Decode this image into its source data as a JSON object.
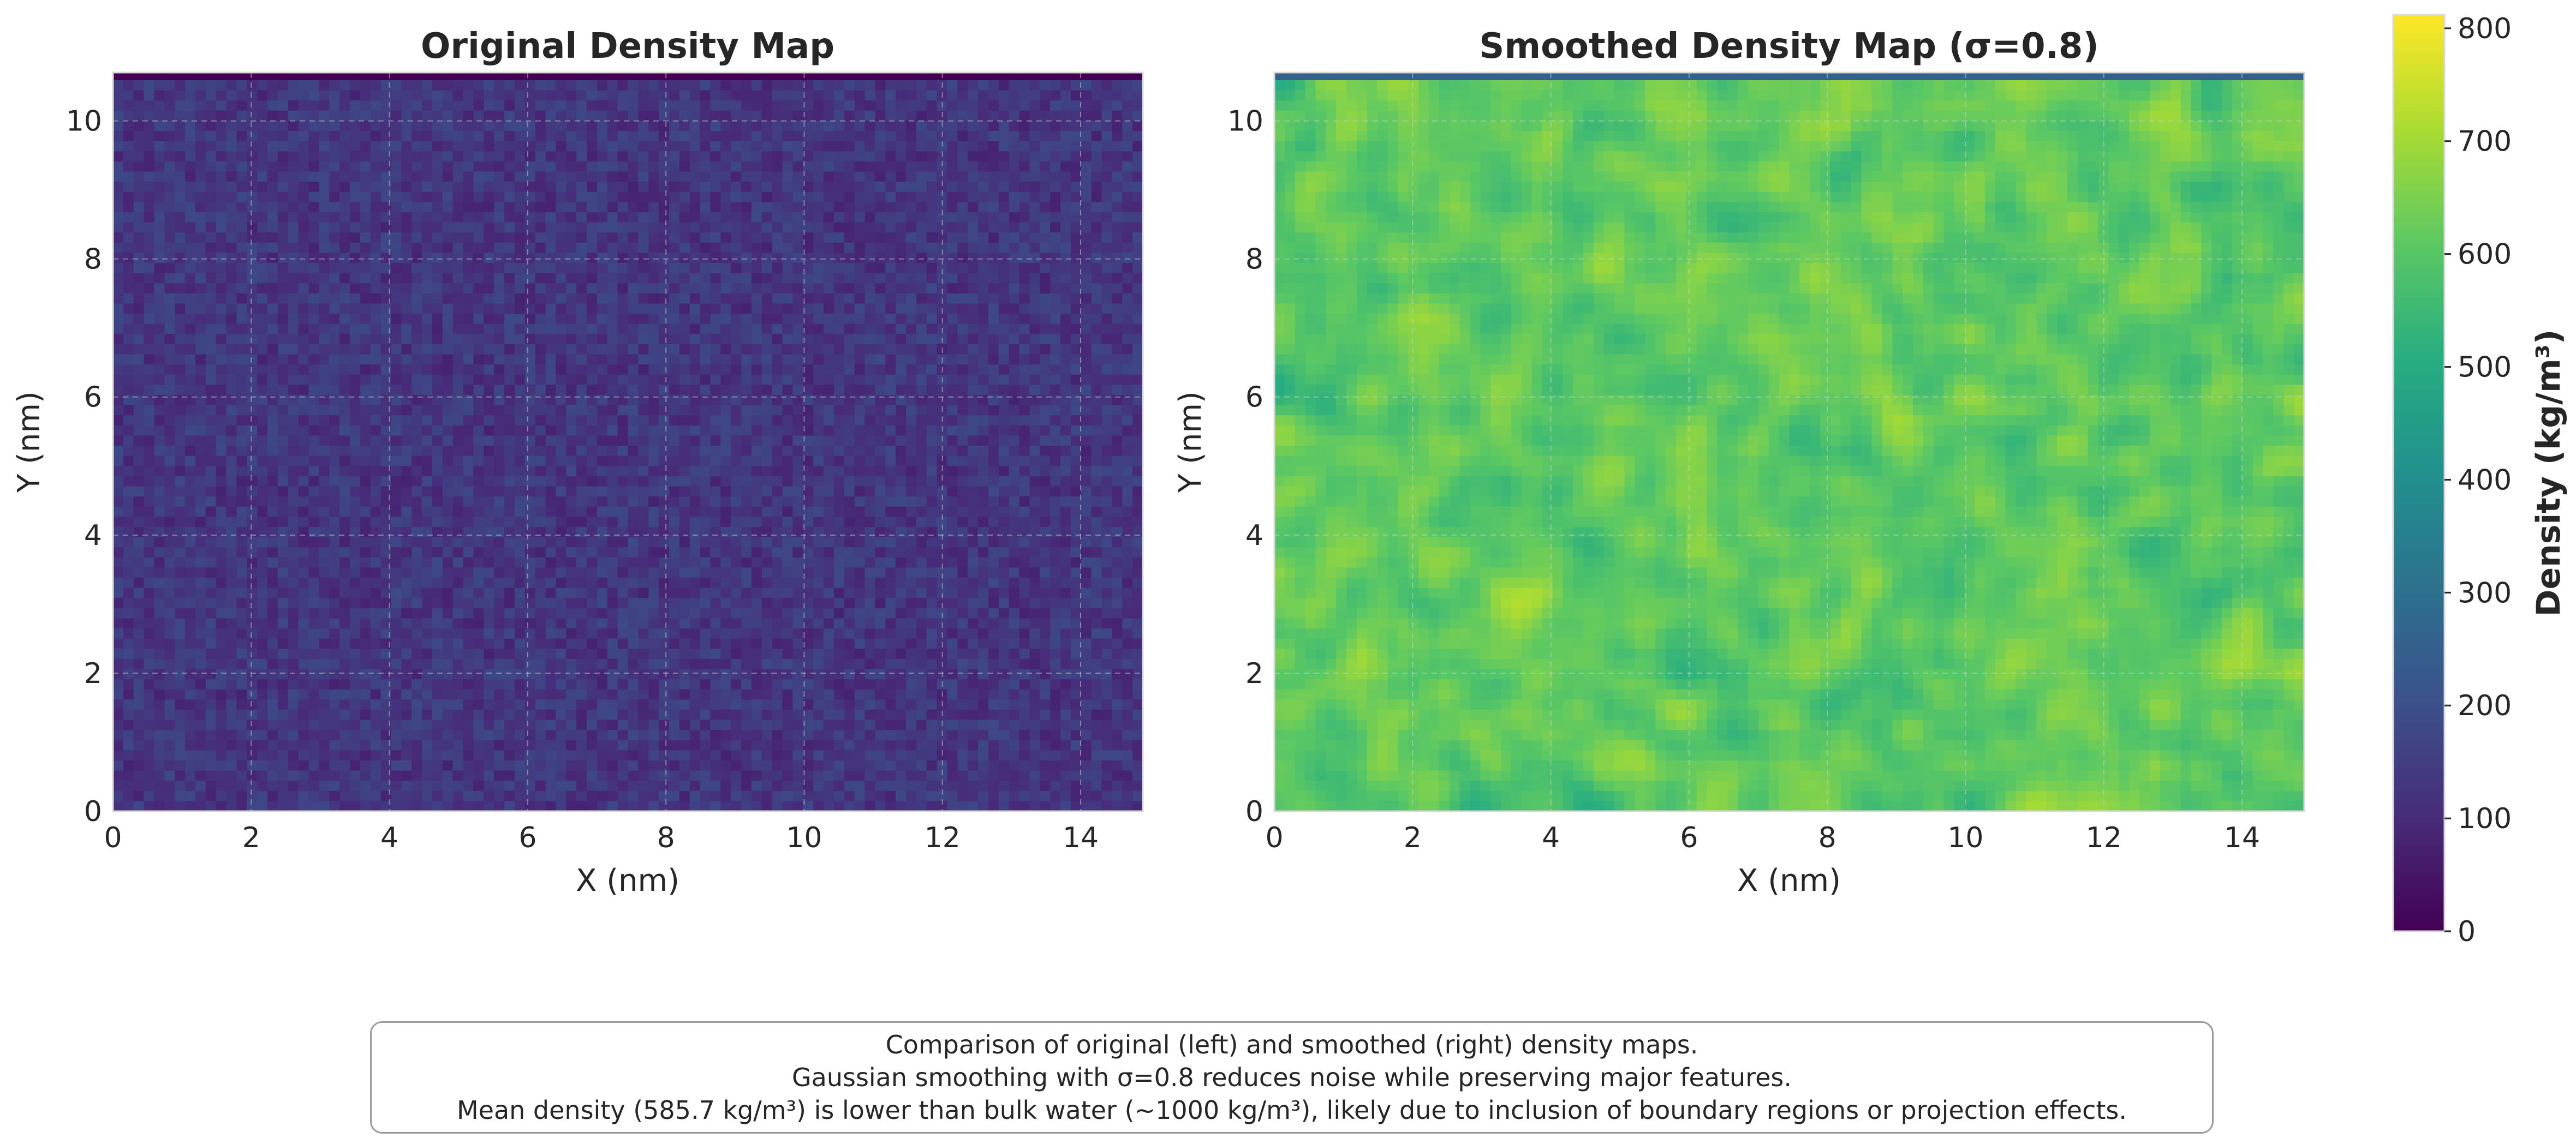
{
  "chart_data": [
    {
      "type": "heatmap",
      "title": "Original Density Map",
      "xlabel": "X (nm)",
      "ylabel": "Y (nm)",
      "xlim": [
        0,
        14.9
      ],
      "ylim": [
        0,
        10.7
      ],
      "xticks": [
        0,
        2,
        4,
        6,
        8,
        10,
        12,
        14
      ],
      "yticks": [
        0,
        2,
        4,
        6,
        8,
        10
      ],
      "colormap": "viridis",
      "color_range": [
        0,
        812
      ],
      "approx_value_range": [
        80,
        180
      ],
      "top_edge_row_value": 0,
      "grid": true
    },
    {
      "type": "heatmap",
      "title": "Smoothed Density Map (σ=0.8)",
      "xlabel": "X (nm)",
      "ylabel": "Y (nm)",
      "xlim": [
        0,
        14.9
      ],
      "ylim": [
        0,
        10.7
      ],
      "xticks": [
        0,
        2,
        4,
        6,
        8,
        10,
        12,
        14
      ],
      "yticks": [
        0,
        2,
        4,
        6,
        8,
        10
      ],
      "colormap": "viridis",
      "color_range": [
        0,
        812
      ],
      "approx_value_range": [
        500,
        720
      ],
      "top_edge_row_value": 250,
      "grid": true
    }
  ],
  "colorbar": {
    "label": "Density (kg/m³)",
    "ticks": [
      0,
      100,
      200,
      300,
      400,
      500,
      600,
      700,
      800
    ],
    "min": 0,
    "max": 812
  },
  "caption": {
    "line1": "Comparison of original (left) and smoothed (right) density maps.",
    "line2": "Gaussian smoothing with σ=0.8 reduces noise while preserving major features.",
    "line3": "Mean density (585.7 kg/m³) is lower than bulk water (~1000 kg/m³), likely due to inclusion of boundary regions or projection effects."
  },
  "colors": {
    "text": "#262626",
    "grid": "#cfcfcf",
    "spine": "#d9d9d9",
    "caption_border": "#9a9a9a"
  }
}
